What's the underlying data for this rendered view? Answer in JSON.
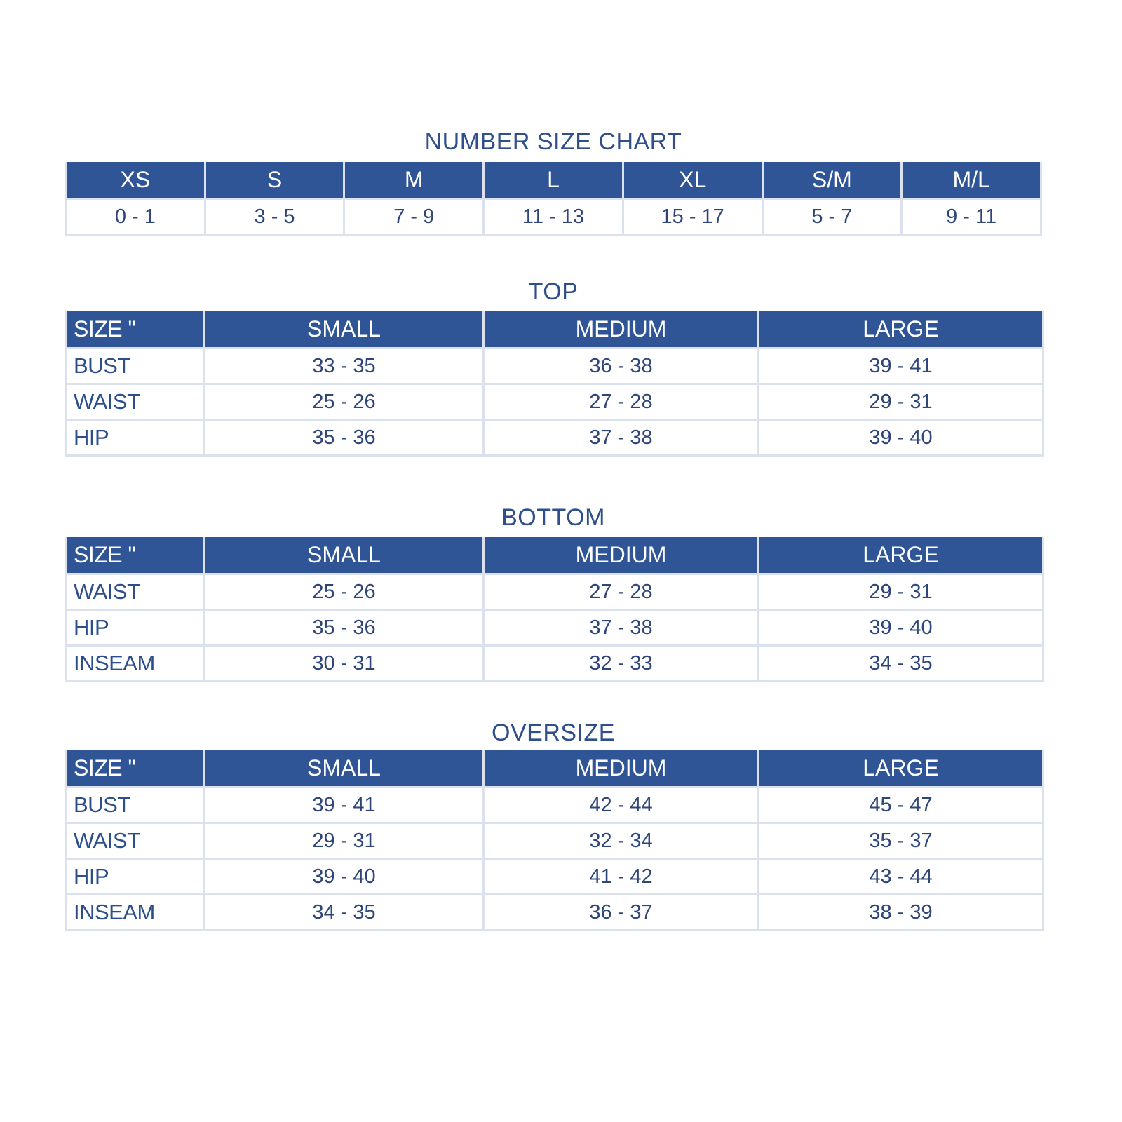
{
  "number_chart": {
    "title": "NUMBER SIZE CHART",
    "headers": [
      "XS",
      "S",
      "M",
      "L",
      "XL",
      "S/M",
      "M/L"
    ],
    "values": [
      "0 - 1",
      "3 - 5",
      "7 - 9",
      "11 - 13",
      "15 - 17",
      "5 - 7",
      "9 - 11"
    ]
  },
  "top": {
    "title": "TOP",
    "headers": [
      "SIZE \"",
      "SMALL",
      "MEDIUM",
      "LARGE"
    ],
    "rows": [
      [
        "BUST",
        "33 - 35",
        "36 - 38",
        "39 - 41"
      ],
      [
        "WAIST",
        "25 - 26",
        "27 - 28",
        "29 - 31"
      ],
      [
        "HIP",
        "35 - 36",
        "37 - 38",
        "39 - 40"
      ]
    ]
  },
  "bottom": {
    "title": "BOTTOM",
    "headers": [
      "SIZE \"",
      "SMALL",
      "MEDIUM",
      "LARGE"
    ],
    "rows": [
      [
        "WAIST",
        "25 - 26",
        "27 - 28",
        "29 - 31"
      ],
      [
        "HIP",
        "35 - 36",
        "37 - 38",
        "39 - 40"
      ],
      [
        "INSEAM",
        "30 - 31",
        "32 - 33",
        "34 - 35"
      ]
    ]
  },
  "oversize": {
    "title": "OVERSIZE",
    "headers": [
      "SIZE \"",
      "SMALL",
      "MEDIUM",
      "LARGE"
    ],
    "rows": [
      [
        "BUST",
        "39 - 41",
        "42 - 44",
        "45 - 47"
      ],
      [
        "WAIST",
        "29 - 31",
        "32 - 34",
        "35 - 37"
      ],
      [
        "HIP",
        "39 - 40",
        "41 - 42",
        "43 - 44"
      ],
      [
        "INSEAM",
        "34 - 35",
        "36 - 37",
        "38 - 39"
      ]
    ]
  },
  "colors": {
    "header_bg": "#2f5597",
    "text": "#2f4678",
    "border": "#dce1ee"
  }
}
